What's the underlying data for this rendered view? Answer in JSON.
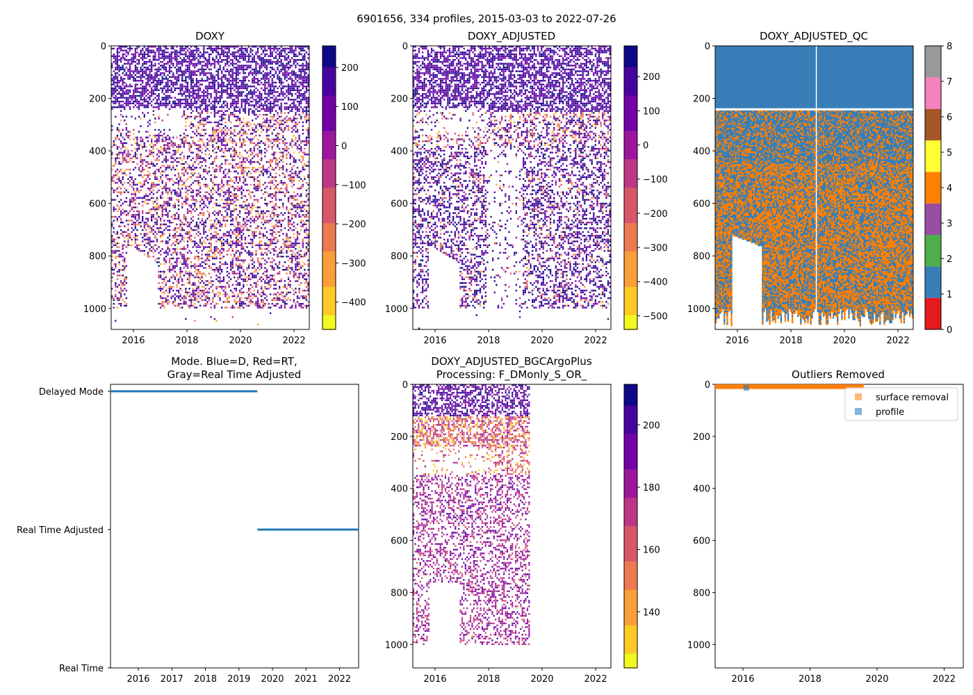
{
  "figure": {
    "suptitle": "6901656, 334 profiles, 2015-03-03 to 2022-07-26"
  },
  "colors": {
    "plasma": [
      "#0d0887",
      "#46039f",
      "#7201a8",
      "#9c179e",
      "#bd3786",
      "#d8576b",
      "#ed7953",
      "#fb9f3a",
      "#fdca26",
      "#f0f921"
    ],
    "qc": [
      "#e41a1c",
      "#377eb8",
      "#4daf4a",
      "#984ea3",
      "#ff7f00",
      "#ffff33",
      "#a65628",
      "#f781bf",
      "#999999"
    ],
    "mode_line": "#1f77b4",
    "surface_removal": "#ff7f0e",
    "profile": "#1f77b4"
  },
  "chart_data": [
    {
      "id": "doxy",
      "type": "heatmap",
      "title": "DOXY",
      "x_range_years": [
        2015.17,
        2022.57
      ],
      "ylim": [
        1080,
        0
      ],
      "x_ticks": [
        "2016",
        "2018",
        "2020",
        "2022"
      ],
      "y_ticks": [
        "0",
        "200",
        "400",
        "600",
        "800",
        "1000"
      ],
      "colorbar": {
        "range": [
          -470,
          255
        ],
        "ticks": [
          "200",
          "100",
          "0",
          "−100",
          "−200",
          "−300",
          "−400"
        ],
        "tick_values": [
          200,
          100,
          0,
          -100,
          -200,
          -300,
          -400
        ]
      }
    },
    {
      "id": "doxy_adjusted",
      "type": "heatmap",
      "title": "DOXY_ADJUSTED",
      "x_range_years": [
        2015.17,
        2022.57
      ],
      "ylim": [
        1080,
        0
      ],
      "x_ticks": [
        "2016",
        "2018",
        "2020",
        "2022"
      ],
      "y_ticks": [
        "0",
        "200",
        "400",
        "600",
        "800",
        "1000"
      ],
      "colorbar": {
        "range": [
          -540,
          290
        ],
        "ticks": [
          "200",
          "100",
          "0",
          "−100",
          "−200",
          "−300",
          "−400",
          "−500"
        ],
        "tick_values": [
          200,
          100,
          0,
          -100,
          -200,
          -300,
          -400,
          -500
        ]
      }
    },
    {
      "id": "doxy_adjusted_qc",
      "type": "heatmap",
      "title": "DOXY_ADJUSTED_QC",
      "x_range_years": [
        2015.17,
        2022.57
      ],
      "ylim": [
        1080,
        0
      ],
      "x_ticks": [
        "2016",
        "2018",
        "2020",
        "2022"
      ],
      "y_ticks": [
        "0",
        "200",
        "400",
        "600",
        "800",
        "1000"
      ],
      "colorbar": {
        "range": [
          0,
          8
        ],
        "ticks": [
          "8",
          "7",
          "6",
          "5",
          "4",
          "3",
          "2",
          "1",
          "0"
        ],
        "tick_values": [
          8,
          7,
          6,
          5,
          4,
          3,
          2,
          1,
          0
        ]
      }
    },
    {
      "id": "mode",
      "type": "scatter",
      "title_line1": "Mode. Blue=D, Red=RT,",
      "title_line2": "Gray=Real Time Adjusted",
      "x_range_years": [
        2015.17,
        2022.57
      ],
      "x_ticks": [
        "2016",
        "2017",
        "2018",
        "2019",
        "2020",
        "2021",
        "2022"
      ],
      "y_categories": [
        "Delayed Mode",
        "Real Time Adjusted",
        "Real Time"
      ],
      "series": [
        {
          "name": "Delayed Mode",
          "x_start": 2015.17,
          "x_end": 2019.55
        },
        {
          "name": "Real Time Adjusted",
          "x_start": 2019.55,
          "x_end": 2022.57
        }
      ]
    },
    {
      "id": "bgc_plus",
      "type": "heatmap",
      "title_line1": "DOXY_ADJUSTED_BGCArgoPlus",
      "title_line2": "Processing: F_DMonly_S_OR_",
      "x_range_years": [
        2015.17,
        2022.57
      ],
      "data_x_end_year": 2019.55,
      "ylim": [
        1090,
        0
      ],
      "x_ticks": [
        "2016",
        "2018",
        "2020",
        "2022"
      ],
      "y_ticks": [
        "0",
        "200",
        "400",
        "600",
        "800",
        "1000"
      ],
      "colorbar": {
        "range": [
          122,
          213
        ],
        "ticks": [
          "200",
          "180",
          "160",
          "140"
        ],
        "tick_values": [
          200,
          180,
          160,
          140
        ]
      }
    },
    {
      "id": "outliers",
      "type": "scatter",
      "title": "Outliers Removed",
      "x_range_years": [
        2015.17,
        2022.57
      ],
      "ylim": [
        1090,
        0
      ],
      "x_ticks": [
        "2016",
        "2018",
        "2020",
        "2022"
      ],
      "y_ticks": [
        "0",
        "200",
        "400",
        "600",
        "800",
        "1000"
      ],
      "legend": {
        "location": "top-right",
        "entries": [
          "surface removal",
          "profile"
        ]
      },
      "series": [
        {
          "name": "surface removal",
          "x_start": 2015.17,
          "x_end": 2019.6,
          "depth_range": [
            0,
            10
          ]
        },
        {
          "name": "profile",
          "points": [
            {
              "x": 2016.1,
              "depth": 6
            }
          ]
        }
      ]
    }
  ]
}
